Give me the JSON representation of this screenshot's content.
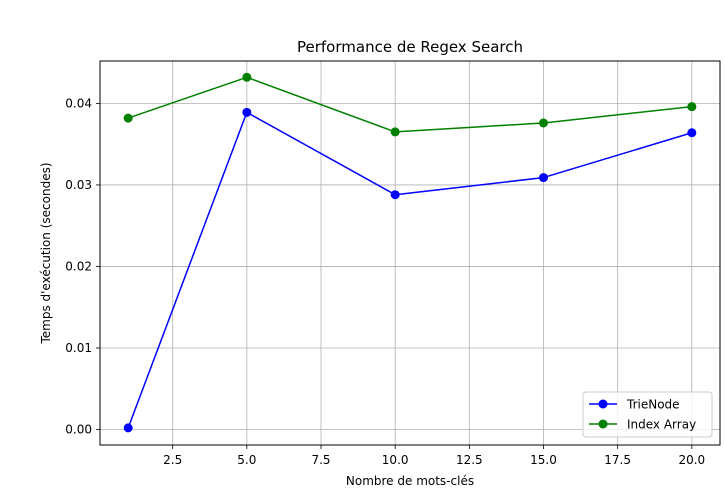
{
  "chart_data": {
    "type": "line",
    "title": "Performance de Regex Search",
    "xlabel": "Nombre de mots-clés",
    "ylabel": "Temps d'exécution (secondes)",
    "x": [
      1,
      5,
      10,
      15,
      20
    ],
    "xlim": [
      0.05,
      20.95
    ],
    "ylim": [
      -0.0019,
      0.0452
    ],
    "xticks": [
      2.5,
      5.0,
      7.5,
      10.0,
      12.5,
      15.0,
      17.5,
      20.0
    ],
    "xtick_labels": [
      "2.5",
      "5.0",
      "7.5",
      "10.0",
      "12.5",
      "15.0",
      "17.5",
      "20.0"
    ],
    "yticks": [
      0.0,
      0.01,
      0.02,
      0.03,
      0.04
    ],
    "ytick_labels": [
      "0.00",
      "0.01",
      "0.02",
      "0.03",
      "0.04"
    ],
    "grid": true,
    "legend_position": "lower-right",
    "series": [
      {
        "name": "TrieNode",
        "color": "#0000ff",
        "marker": "circle",
        "values": [
          0.0002,
          0.0389,
          0.0288,
          0.0309,
          0.0364
        ]
      },
      {
        "name": "Index Array",
        "color": "#008000",
        "marker": "circle",
        "values": [
          0.0382,
          0.0432,
          0.0365,
          0.0376,
          0.0396
        ]
      }
    ]
  }
}
